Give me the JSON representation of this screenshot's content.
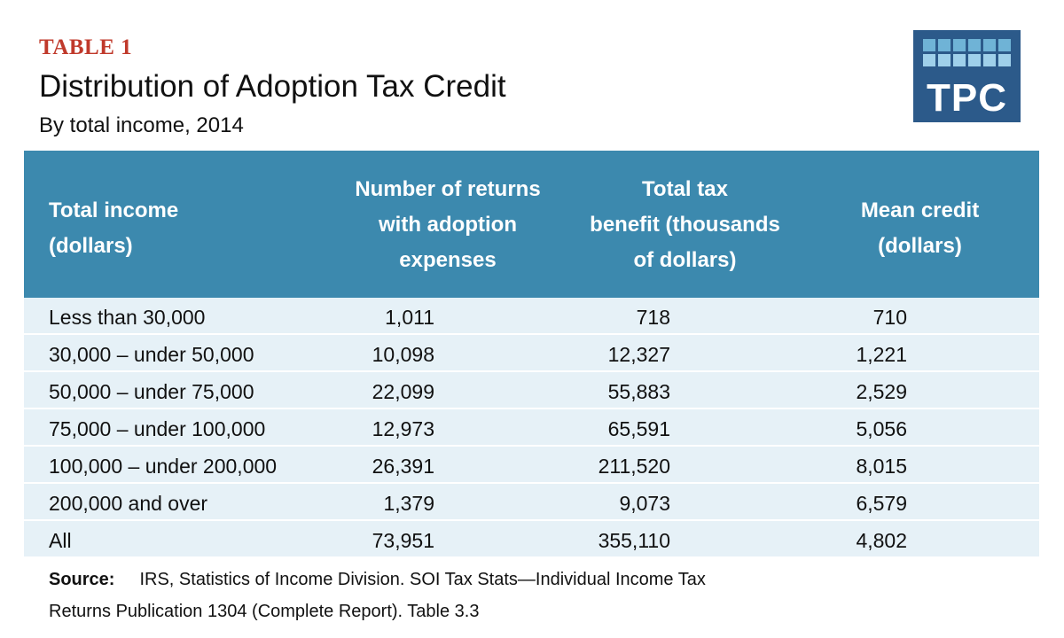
{
  "header": {
    "kicker": "TABLE 1",
    "title": "Distribution of Adoption Tax Credit",
    "subtitle": "By total income, 2014"
  },
  "logo": {
    "text": "TPC",
    "color": "#2c5a8a",
    "accent": "#6fb3d6"
  },
  "colors": {
    "header_bg": "#3c89ae",
    "row_bg": "#e6f1f7",
    "kicker": "#c0392b"
  },
  "chart_data": {
    "type": "table",
    "columns": [
      [
        "Total income",
        "(dollars)"
      ],
      [
        "Number of returns",
        "with adoption",
        "expenses"
      ],
      [
        "Total tax",
        "benefit (thousands",
        "of dollars)"
      ],
      [
        "Mean credit",
        "(dollars)"
      ]
    ],
    "rows": [
      [
        "Less than 30,000",
        "1,011",
        "718",
        "710"
      ],
      [
        "30,000 – under 50,000",
        "10,098",
        "12,327",
        "1,221"
      ],
      [
        "50,000 – under 75,000",
        "22,099",
        "55,883",
        "2,529"
      ],
      [
        "75,000 – under 100,000",
        "12,973",
        "65,591",
        "5,056"
      ],
      [
        "100,000 – under 200,000",
        "26,391",
        "211,520",
        "8,015"
      ],
      [
        "200,000 and over",
        "1,379",
        "9,073",
        "6,579"
      ],
      [
        "All",
        "73,951",
        "355,110",
        "4,802"
      ]
    ]
  },
  "source": {
    "label": "Source:",
    "line1": "IRS, Statistics of Income Division. SOI Tax Stats—Individual Income Tax",
    "line2": "Returns Publication 1304 (Complete Report). Table 3.3"
  }
}
